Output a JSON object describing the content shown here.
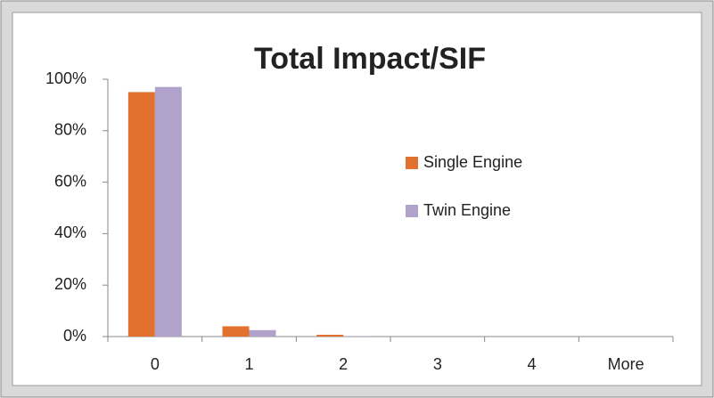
{
  "chart_data": {
    "type": "bar",
    "title": "Total Impact/SIF",
    "categories": [
      "0",
      "1",
      "2",
      "3",
      "4",
      "More"
    ],
    "series": [
      {
        "name": "Single Engine",
        "color": "#e2712f",
        "values": [
          95,
          4,
          0.7,
          0,
          0,
          0
        ]
      },
      {
        "name": "Twin Engine",
        "color": "#b1a2cb",
        "values": [
          97,
          2.5,
          0.2,
          0,
          0,
          0
        ]
      }
    ],
    "ylim": [
      0,
      100
    ],
    "yticks": [
      {
        "value": 0,
        "label": "0%"
      },
      {
        "value": 20,
        "label": "20%"
      },
      {
        "value": 40,
        "label": "40%"
      },
      {
        "value": 60,
        "label": "60%"
      },
      {
        "value": 80,
        "label": "80%"
      },
      {
        "value": 100,
        "label": "100%"
      }
    ],
    "grid": false,
    "legend": "right"
  }
}
